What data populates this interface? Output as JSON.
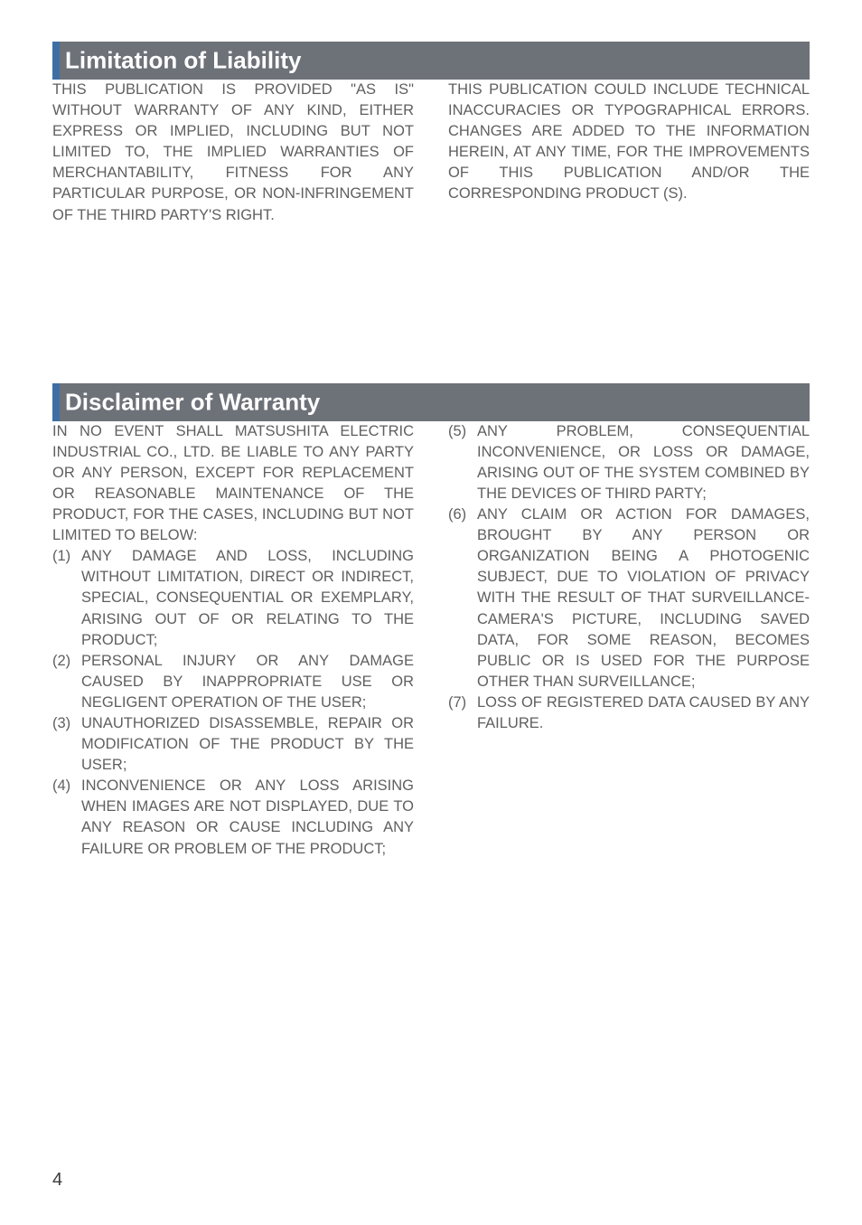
{
  "section1": {
    "title": "Limitation of Liability",
    "header_bg": "#6d7178",
    "accent_bg": "#3f6ea5",
    "title_color": "#ffffff",
    "title_fontsize": 26,
    "col1_para": "THIS PUBLICATION IS PROVIDED \"AS IS\" WITHOUT WARRANTY OF ANY KIND, EITHER EXPRESS OR IMPLIED, INCLUDING BUT NOT LIMITED TO, THE IMPLIED WARRANTIES OF MERCHANTABILITY, FITNESS FOR ANY PARTICULAR PURPOSE, OR NON-INFRINGEMENT OF THE THIRD PARTY'S RIGHT.",
    "col2_para": "THIS PUBLICATION COULD INCLUDE TECHNICAL INACCURACIES OR TYPOGRAPHICAL ERRORS. CHANGES ARE ADDED TO THE INFORMATION HEREIN, AT ANY TIME, FOR THE IMPROVEMENTS OF THIS PUBLICATION AND/OR THE CORRESPONDING PRODUCT (S)."
  },
  "section2": {
    "title": "Disclaimer of Warranty",
    "col1_intro": "IN NO EVENT SHALL MATSUSHITA ELECTRIC INDUSTRIAL CO., LTD. BE LIABLE TO ANY PARTY OR ANY PERSON, EXCEPT FOR REPLACEMENT OR REASONABLE MAINTENANCE OF THE PRODUCT, FOR THE CASES, INCLUDING BUT NOT LIMITED TO BELOW:",
    "col1_items": [
      {
        "marker": "(1)",
        "text": "ANY DAMAGE AND LOSS, INCLUDING WITHOUT LIMITATION, DIRECT OR INDIRECT, SPECIAL, CONSEQUENTIAL OR EXEMPLARY, ARISING OUT OF OR RELATING TO THE PRODUCT;"
      },
      {
        "marker": "(2)",
        "text": "PERSONAL INJURY OR ANY DAMAGE CAUSED BY INAPPROPRIATE USE OR NEGLIGENT OPERATION OF THE USER;"
      },
      {
        "marker": "(3)",
        "text": "UNAUTHORIZED DISASSEMBLE, REPAIR OR MODIFICATION OF THE PRODUCT BY THE USER;"
      },
      {
        "marker": "(4)",
        "text": "INCONVENIENCE OR ANY LOSS ARISING WHEN IMAGES ARE NOT DISPLAYED, DUE TO ANY REASON OR CAUSE INCLUDING ANY FAILURE OR PROBLEM OF THE PRODUCT;"
      }
    ],
    "col2_items": [
      {
        "marker": "(5)",
        "text": "ANY PROBLEM, CONSEQUENTIAL INCONVENIENCE, OR LOSS OR DAMAGE, ARISING OUT OF THE SYSTEM COMBINED BY THE DEVICES OF THIRD PARTY;"
      },
      {
        "marker": "(6)",
        "text": "ANY CLAIM OR ACTION FOR DAMAGES, BROUGHT BY ANY PERSON OR ORGANIZATION BEING A PHOTOGENIC SUBJECT, DUE TO VIOLATION OF PRIVACY WITH THE RESULT OF THAT SURVEILLANCE-CAMERA'S PICTURE, INCLUDING SAVED DATA, FOR SOME REASON, BECOMES PUBLIC OR IS USED FOR THE PURPOSE OTHER THAN SURVEILLANCE;"
      },
      {
        "marker": "(7)",
        "text": "LOSS OF REGISTERED DATA CAUSED BY ANY FAILURE."
      }
    ]
  },
  "text_color": "#5f5f5f",
  "body_fontsize": 16.5,
  "page_number": "4"
}
